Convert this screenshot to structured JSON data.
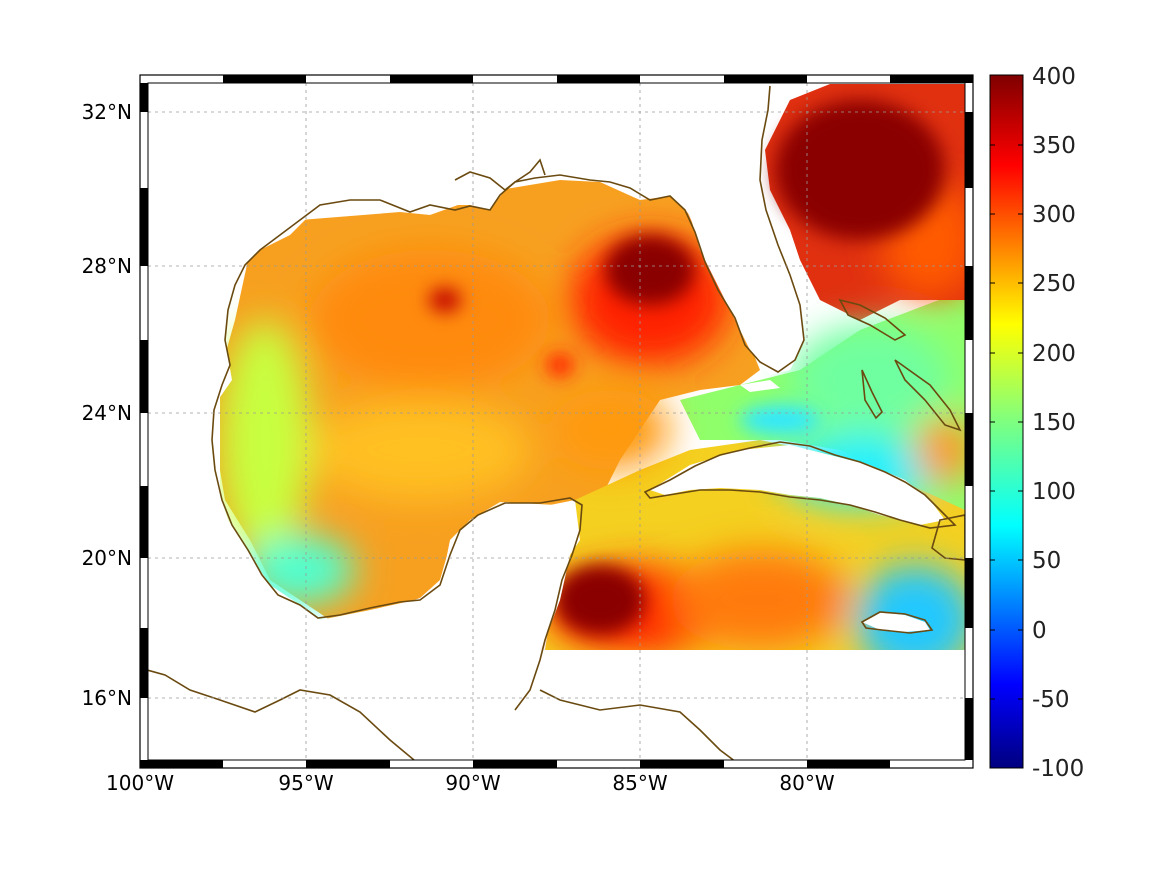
{
  "map": {
    "region": "Gulf of Mexico and western Caribbean",
    "longitude_range_deg": [
      -100,
      -75
    ],
    "latitude_range_deg": [
      15,
      33
    ],
    "lon_ticks": [
      "100°W",
      "95°W",
      "90°W",
      "85°W",
      "80°W"
    ],
    "lat_ticks": [
      "32°N",
      "28°N",
      "24°N",
      "20°N",
      "16°N"
    ],
    "grid": true,
    "coastline_color": "#6a4a10",
    "frame_style": "alternating black/white border"
  },
  "colorbar": {
    "colormap": "jet",
    "min": -100,
    "max": 400,
    "tick_labels": [
      "400",
      "350",
      "300",
      "250",
      "200",
      "150",
      "100",
      "50",
      "0",
      "-50",
      "-100"
    ],
    "position": "right"
  },
  "chart_data": {
    "type": "heatmap",
    "description_of_field": "gridded scalar field over ocean, values in colorbar units",
    "notable_values": [
      {
        "feature": "Gulf Stream / Atlantic off Florida",
        "approx_value": 380
      },
      {
        "feature": "Loop Current eddy west of Florida",
        "approx_value": 360
      },
      {
        "feature": "NW Caribbean off Yucatan",
        "approx_value": 370
      },
      {
        "feature": "Central Gulf",
        "approx_value": 270
      },
      {
        "feature": "Western Gulf shelf",
        "approx_value": 200
      },
      {
        "feature": "Bay of Campeche coast",
        "approx_value": 130
      },
      {
        "feature": "Cuba north coast / Bahamas banks",
        "approx_value": 120
      },
      {
        "feature": "South of Jamaica",
        "approx_value": 60
      }
    ],
    "colorbar_range": [
      -100,
      400
    ]
  }
}
